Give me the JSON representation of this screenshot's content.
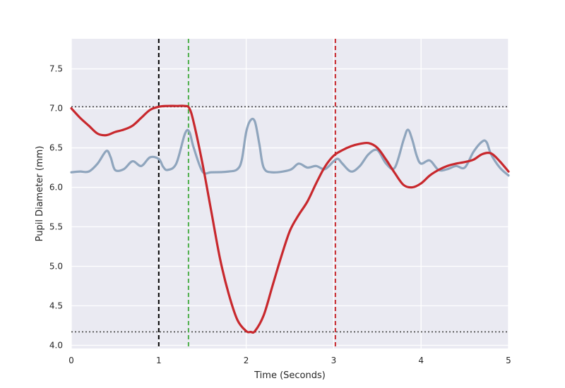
{
  "chart_data": {
    "type": "line",
    "title": "",
    "xlabel": "Time (Seconds)",
    "ylabel": "Pupil Diameter (mm)",
    "xlim": [
      0,
      5
    ],
    "ylim": [
      3.96,
      7.88
    ],
    "xticks": [
      0,
      1,
      2,
      3,
      4,
      5
    ],
    "xtick_labels": [
      "0",
      "1",
      "2",
      "3",
      "4",
      "5"
    ],
    "yticks": [
      4.0,
      4.5,
      5.0,
      5.5,
      6.0,
      6.5,
      7.0,
      7.5
    ],
    "ytick_labels": [
      "4.0",
      "4.5",
      "5.0",
      "5.5",
      "6.0",
      "6.5",
      "7.0",
      "7.5"
    ],
    "grid": true,
    "legend": "none",
    "background_color": "#eaeaf2",
    "series": [
      {
        "color": "#8fa5bd",
        "x": [
          0,
          0.1,
          0.2,
          0.3,
          0.4,
          0.45,
          0.5,
          0.6,
          0.7,
          0.8,
          0.9,
          1.0,
          1.05,
          1.1,
          1.2,
          1.3,
          1.35,
          1.4,
          1.5,
          1.6,
          1.8,
          1.9,
          1.95,
          2.0,
          2.05,
          2.1,
          2.15,
          2.2,
          2.3,
          2.5,
          2.6,
          2.7,
          2.8,
          2.9,
          3.0,
          3.05,
          3.1,
          3.2,
          3.3,
          3.4,
          3.5,
          3.6,
          3.7,
          3.8,
          3.85,
          3.9,
          3.95,
          4.0,
          4.1,
          4.2,
          4.3,
          4.4,
          4.5,
          4.6,
          4.7,
          4.75,
          4.8,
          4.9,
          5.0
        ],
        "y": [
          6.19,
          6.2,
          6.2,
          6.3,
          6.46,
          6.38,
          6.22,
          6.23,
          6.33,
          6.27,
          6.38,
          6.36,
          6.26,
          6.22,
          6.3,
          6.68,
          6.7,
          6.5,
          6.2,
          6.19,
          6.2,
          6.23,
          6.35,
          6.7,
          6.85,
          6.83,
          6.55,
          6.25,
          6.19,
          6.22,
          6.3,
          6.25,
          6.27,
          6.23,
          6.33,
          6.36,
          6.3,
          6.2,
          6.27,
          6.42,
          6.47,
          6.3,
          6.25,
          6.6,
          6.73,
          6.6,
          6.4,
          6.3,
          6.34,
          6.22,
          6.23,
          6.27,
          6.25,
          6.45,
          6.58,
          6.57,
          6.42,
          6.25,
          6.15
        ]
      },
      {
        "color": "#c8282d",
        "x": [
          0,
          0.1,
          0.2,
          0.3,
          0.4,
          0.5,
          0.6,
          0.7,
          0.8,
          0.9,
          1.0,
          1.1,
          1.2,
          1.3,
          1.35,
          1.4,
          1.5,
          1.6,
          1.7,
          1.8,
          1.9,
          2.0,
          2.05,
          2.1,
          2.2,
          2.3,
          2.4,
          2.5,
          2.6,
          2.7,
          2.8,
          2.9,
          3.0,
          3.1,
          3.2,
          3.3,
          3.4,
          3.5,
          3.6,
          3.7,
          3.8,
          3.9,
          4.0,
          4.1,
          4.2,
          4.3,
          4.4,
          4.5,
          4.6,
          4.7,
          4.8,
          4.9,
          5.0
        ],
        "y": [
          7.0,
          6.88,
          6.78,
          6.68,
          6.66,
          6.7,
          6.73,
          6.78,
          6.88,
          6.98,
          7.02,
          7.03,
          7.03,
          7.03,
          7.0,
          6.82,
          6.3,
          5.7,
          5.1,
          4.65,
          4.32,
          4.18,
          4.17,
          4.18,
          4.38,
          4.75,
          5.12,
          5.45,
          5.65,
          5.82,
          6.05,
          6.26,
          6.4,
          6.47,
          6.52,
          6.55,
          6.56,
          6.5,
          6.35,
          6.18,
          6.03,
          6.0,
          6.05,
          6.15,
          6.22,
          6.27,
          6.3,
          6.32,
          6.35,
          6.42,
          6.43,
          6.33,
          6.2
        ]
      }
    ],
    "vertical_lines": [
      {
        "x": 1.0,
        "color": "#000000",
        "style": "dashed"
      },
      {
        "x": 1.34,
        "color": "#4daf4a",
        "style": "dashed"
      },
      {
        "x": 3.02,
        "color": "#c8282d",
        "style": "dashed"
      }
    ],
    "horizontal_lines": [
      {
        "y": 7.02,
        "color": "#444444",
        "style": "dotted"
      },
      {
        "y": 4.17,
        "color": "#444444",
        "style": "dotted"
      }
    ]
  }
}
